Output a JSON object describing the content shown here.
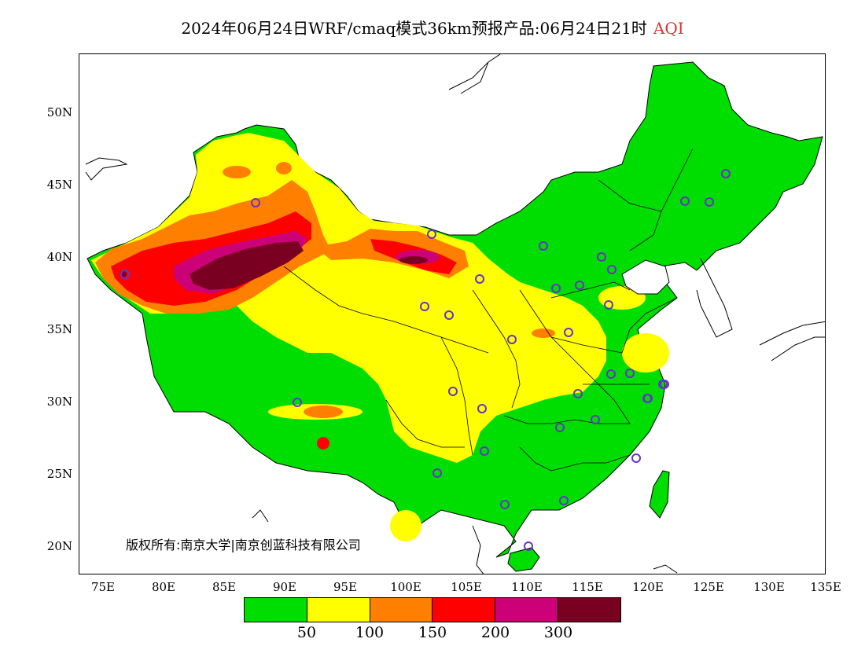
{
  "title": {
    "main": "2024年06月24日WRF/cmaq模式36km预报产品:06月24日21时",
    "variable": "AQI",
    "variable_color": "#e03030"
  },
  "axes": {
    "y_labels": [
      "50N",
      "45N",
      "40N",
      "35N",
      "30N",
      "25N",
      "20N"
    ],
    "x_labels": [
      "75E",
      "80E",
      "85E",
      "90E",
      "95E",
      "100E",
      "105E",
      "110E",
      "115E",
      "120E",
      "125E",
      "130E",
      "135E"
    ]
  },
  "copyright": "版权所有:南京大学|南京创蓝科技有限公司",
  "legend": {
    "colors": [
      "#00dd00",
      "#ffff00",
      "#ff8000",
      "#ff0000",
      "#cc0077",
      "#7a0021"
    ],
    "thresholds": [
      "50",
      "100",
      "150",
      "200",
      "300"
    ]
  },
  "stations_marker_color": "#6633cc"
}
